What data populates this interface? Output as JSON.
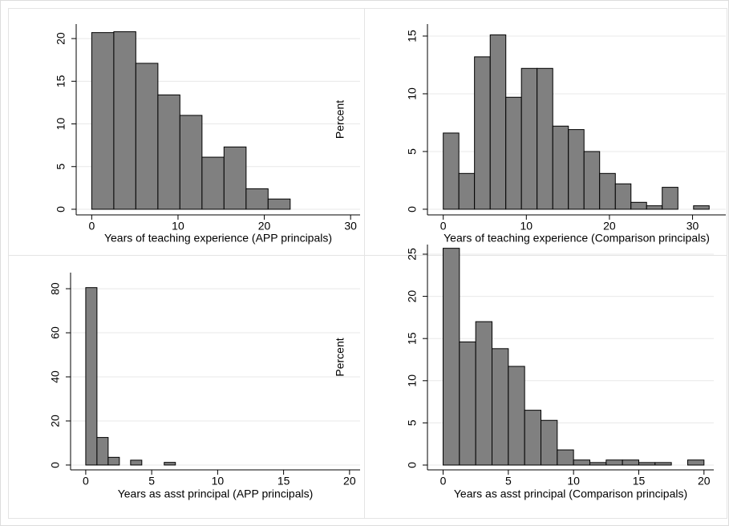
{
  "chart_data": [
    {
      "type": "histogram",
      "xlabel": "Years of teaching experience (APP principals)",
      "bins": [
        0,
        2.56,
        5.11,
        7.67,
        10.22,
        12.78,
        15.33,
        17.89,
        20.44,
        23
      ],
      "values": [
        20.7,
        20.8,
        17.1,
        13.4,
        11.0,
        6.1,
        7.3,
        2.4,
        1.2
      ],
      "color": "#808080",
      "xlim": [
        -1.8,
        31.1
      ],
      "ylim": [
        -0.66,
        21.7
      ],
      "xticks": [
        0,
        10,
        20,
        30
      ],
      "yticks": [
        0,
        5,
        10,
        15,
        20
      ],
      "grid": true
    },
    {
      "type": "histogram",
      "xlabel": "Years of teaching experience (Comparison principals)",
      "ylabel": "Percent",
      "bins": [
        0,
        1.88,
        3.76,
        5.65,
        7.53,
        9.41,
        11.29,
        13.18,
        15.06,
        16.94,
        18.82,
        20.71,
        22.59,
        24.47,
        26.35,
        28.24,
        30.12,
        32
      ],
      "values": [
        6.6,
        3.1,
        13.2,
        15.1,
        9.7,
        12.2,
        12.2,
        7.2,
        6.9,
        5.0,
        3.1,
        2.2,
        0.6,
        0.3,
        1.9,
        0,
        0.3
      ],
      "color": "#808080",
      "xlim": [
        -1.9,
        34
      ],
      "ylim": [
        -0.49,
        16.04
      ],
      "xticks": [
        0,
        10,
        20,
        30
      ],
      "yticks": [
        0,
        5,
        10,
        15
      ],
      "grid": true
    },
    {
      "type": "histogram",
      "xlabel": "Years as asst principal (APP principals)",
      "bins": [
        0,
        0.85,
        1.7,
        2.55,
        3.4,
        4.25,
        5.1,
        5.95,
        6.8
      ],
      "values": [
        80.5,
        12.5,
        3.5,
        0,
        2.2,
        0,
        0,
        1.2
      ],
      "color": "#808080",
      "xlim": [
        -1.15,
        20.8
      ],
      "ylim": [
        -2.2,
        87.3
      ],
      "xticks": [
        0,
        5,
        10,
        15,
        20
      ],
      "yticks": [
        0,
        20,
        40,
        60,
        80
      ],
      "grid": true
    },
    {
      "type": "histogram",
      "xlabel": "Years as asst principal (Comparison principals)",
      "ylabel": "Percent",
      "bins": [
        0,
        1.25,
        2.5,
        3.75,
        5,
        6.25,
        7.5,
        8.75,
        10,
        11.25,
        12.5,
        13.75,
        15,
        16.25,
        17.5,
        18.75,
        20
      ],
      "values": [
        25.7,
        14.6,
        17.0,
        13.8,
        11.7,
        6.5,
        5.3,
        1.8,
        0.6,
        0.3,
        0.6,
        0.6,
        0.3,
        0.3,
        0,
        0.6
      ],
      "color": "#808080",
      "xlim": [
        -1.2,
        20.75
      ],
      "ylim": [
        -0.57,
        26.14
      ],
      "xticks": [
        0,
        5,
        10,
        15,
        20
      ],
      "yticks": [
        0,
        5,
        10,
        15,
        20,
        25
      ],
      "grid": true
    }
  ]
}
